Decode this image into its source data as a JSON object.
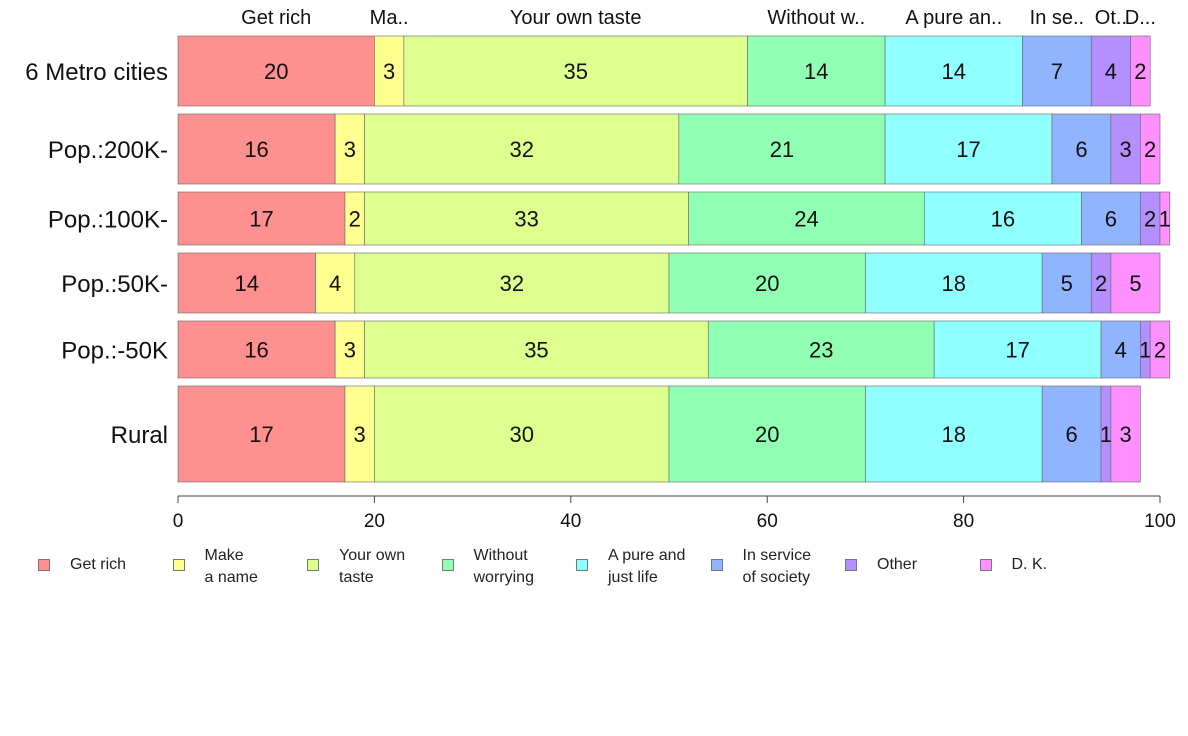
{
  "chart_data": {
    "type": "bar",
    "orientation": "horizontal",
    "stacked": true,
    "categories": [
      "6 Metro cities",
      "Pop.:200K-",
      "Pop.:100K-",
      "Pop.:50K-",
      "Pop.:-50K",
      "Rural"
    ],
    "series": [
      {
        "name": "Get rich",
        "top_label": "Get rich",
        "legend": "Get rich",
        "color": "#ff9090",
        "values": [
          20,
          16,
          17,
          14,
          16,
          17
        ]
      },
      {
        "name": "Make a name",
        "top_label": "Ma..",
        "legend": "Make\na name",
        "color": "#ffff90",
        "values": [
          3,
          3,
          2,
          4,
          3,
          3
        ]
      },
      {
        "name": "Your own taste",
        "top_label": "Your own taste",
        "legend": "Your own\ntaste",
        "color": "#deff90",
        "values": [
          35,
          32,
          33,
          32,
          35,
          30
        ]
      },
      {
        "name": "Without worrying",
        "top_label": "Without w..",
        "legend": "Without\nworrying",
        "color": "#90ffb4",
        "values": [
          14,
          21,
          24,
          20,
          23,
          20
        ]
      },
      {
        "name": "A pure and just life",
        "top_label": "A pure an..",
        "legend": "A pure and\njust life",
        "color": "#90ffff",
        "values": [
          14,
          17,
          16,
          18,
          17,
          18
        ]
      },
      {
        "name": "In service of society",
        "top_label": "In se..",
        "legend": "In service\nof society",
        "color": "#90b4ff",
        "values": [
          7,
          6,
          6,
          5,
          4,
          6
        ]
      },
      {
        "name": "Other",
        "top_label": "Ot..",
        "legend": "Other",
        "color": "#b490ff",
        "values": [
          4,
          3,
          2,
          2,
          1,
          1
        ]
      },
      {
        "name": "D. K.",
        "top_label": "D...",
        "legend": "D. K.",
        "color": "#ff90ff",
        "values": [
          2,
          2,
          1,
          5,
          2,
          3
        ]
      }
    ],
    "xlim": [
      0,
      100
    ],
    "xticks": [
      "0",
      "20",
      "40",
      "60",
      "80",
      "100"
    ],
    "legend_position": "bottom",
    "title": "",
    "xlabel": "",
    "ylabel": ""
  }
}
